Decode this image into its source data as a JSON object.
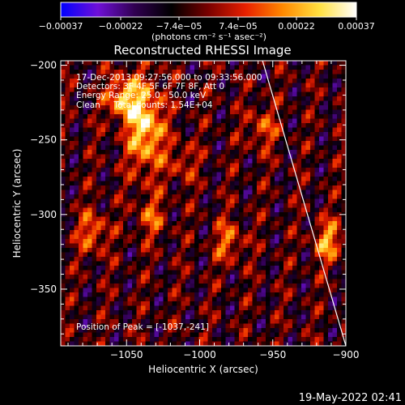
{
  "chart_data": {
    "type": "heatmap",
    "title": "Reconstructed RHESSI Image",
    "xlabel": "Heliocentric X (arcsec)",
    "ylabel": "Heliocentric Y (arcsec)",
    "xlim": [
      -1095,
      -900
    ],
    "ylim": [
      -388,
      -197
    ],
    "x_ticks": [
      -1050,
      -1000,
      -950,
      -900
    ],
    "x_tick_labels": [
      "−1050",
      "−1000",
      "−950",
      "−900"
    ],
    "y_ticks": [
      -200,
      -250,
      -300,
      -350
    ],
    "y_tick_labels": [
      "−200",
      "−250",
      "−300",
      "−350"
    ],
    "colorbar": {
      "range": [
        -0.00037,
        0.00037
      ],
      "ticks": [
        -0.00037,
        -0.00022,
        -7.4e-05,
        7.4e-05,
        0.00022,
        0.00037
      ],
      "tick_labels": [
        "−0.00037",
        "−0.00022",
        "−7.4e−05",
        "7.4e−05",
        "0.00022",
        "0.00037"
      ],
      "unit_label": "(photons cm⁻² s⁻¹ asec⁻²)",
      "colors": [
        "#0000ff",
        "#6f10d8",
        "#300050",
        "#000000",
        "#7a0000",
        "#e82000",
        "#ff8800",
        "#ffe040",
        "#ffffff"
      ]
    },
    "annotations": [
      "17-Dec-2013 09:27:56.000 to 09:33:56.000",
      "Detectors: 3F 4F 5F 6F 7F 8F, Att 0",
      "Energy Range: 25.0 - 50.0 keV",
      "Clean     Total counts: 1.54E+04",
      "Position of Peak = [-1037,-241]"
    ],
    "limb_line": [
      [
        -957,
        -197
      ],
      [
        -900,
        -388
      ]
    ],
    "peaks": [
      {
        "x": -1037,
        "y": -241,
        "value": 0.00037
      },
      {
        "x": -1053,
        "y": -222,
        "value": 0.00032
      },
      {
        "x": -1073,
        "y": -312,
        "value": 0.00022
      },
      {
        "x": -912,
        "y": -318,
        "value": 0.00026
      },
      {
        "x": -957,
        "y": -242,
        "value": 0.00018
      },
      {
        "x": -980,
        "y": -318,
        "value": 0.0002
      },
      {
        "x": -1033,
        "y": -302,
        "value": 0.00017
      },
      {
        "x": -1012,
        "y": -265,
        "value": 0.00014
      }
    ],
    "grid": false,
    "legend": "none"
  },
  "footer": {
    "timestamp": "19-May-2022 02:41"
  }
}
